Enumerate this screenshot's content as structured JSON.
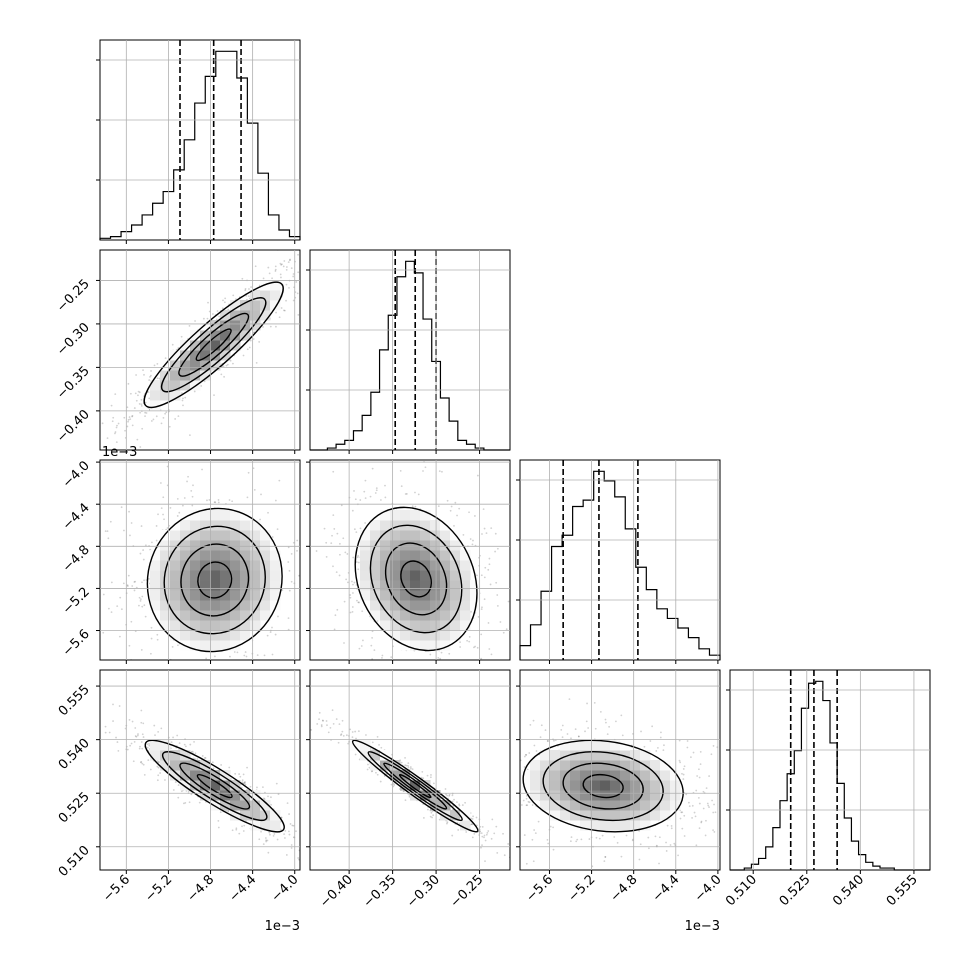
{
  "chart_data": {
    "type": "corner",
    "figure_background": "#ffffff",
    "colors": {
      "hist_line": "#000000",
      "grid": "#b0b0b0",
      "quantile_line": "#000000",
      "density_dark": "#000000",
      "density_light": "#ffffff"
    },
    "grid": true,
    "parameters": [
      {
        "name": "",
        "range": [
          -5.85,
          -3.95
        ],
        "ticks": [
          -5.6,
          -5.2,
          -4.8,
          -4.4,
          -4.0
        ],
        "tick_labels": [
          "−5.6",
          "−5.2",
          "−4.8",
          "−4.4",
          "−4.0"
        ],
        "offset_text": "1e−3",
        "quantiles": [
          -5.09,
          -4.77,
          -4.51
        ],
        "histogram": {
          "bins": [
            -5.85,
            -5.75,
            -5.65,
            -5.55,
            -5.45,
            -5.35,
            -5.25,
            -5.15,
            -5.05,
            -4.95,
            -4.85,
            -4.75,
            -4.65,
            -4.55,
            -4.45,
            -4.35,
            -4.25,
            -4.15,
            -4.05,
            -3.95
          ],
          "counts": [
            1,
            2,
            5,
            9,
            15,
            22,
            29,
            42,
            60,
            82,
            98,
            113,
            113,
            97,
            70,
            40,
            15,
            6,
            2
          ]
        }
      },
      {
        "name": "",
        "range": [
          -0.445,
          -0.215
        ],
        "ticks": [
          -0.4,
          -0.35,
          -0.3,
          -0.25
        ],
        "tick_labels": [
          "−0.40",
          "−0.35",
          "−0.30",
          "−0.25"
        ],
        "offset_text": "",
        "quantiles": [
          -0.347,
          -0.324,
          -0.3
        ],
        "histogram": {
          "bins": [
            -0.445,
            -0.435,
            -0.425,
            -0.415,
            -0.405,
            -0.395,
            -0.385,
            -0.375,
            -0.365,
            -0.355,
            -0.345,
            -0.335,
            -0.325,
            -0.315,
            -0.305,
            -0.295,
            -0.285,
            -0.275,
            -0.265,
            -0.255,
            -0.245,
            -0.235,
            -0.225,
            -0.215
          ],
          "counts": [
            0,
            0,
            1,
            3,
            5,
            10,
            18,
            30,
            52,
            70,
            90,
            98,
            92,
            68,
            46,
            27,
            15,
            5,
            3,
            1,
            0,
            0,
            0
          ]
        }
      },
      {
        "name": "",
        "range": [
          -5.88,
          -3.98
        ],
        "ticks": [
          -5.6,
          -5.2,
          -4.8,
          -4.4,
          -4.0
        ],
        "tick_labels": [
          "−5.6",
          "−5.2",
          "−4.8",
          "−4.4",
          "−4.0"
        ],
        "offset_text": "1e−3",
        "quantiles": [
          -5.47,
          -5.13,
          -4.76
        ],
        "histogram": {
          "bins": [
            -5.88,
            -5.78,
            -5.68,
            -5.58,
            -5.48,
            -5.38,
            -5.28,
            -5.18,
            -5.08,
            -4.98,
            -4.88,
            -4.78,
            -4.68,
            -4.58,
            -4.48,
            -4.38,
            -4.28,
            -4.18,
            -4.08,
            -3.98
          ],
          "counts": [
            9,
            22,
            43,
            71,
            78,
            96,
            100,
            118,
            112,
            102,
            82,
            58,
            44,
            32,
            26,
            20,
            14,
            7,
            3
          ]
        }
      },
      {
        "name": "",
        "range": [
          0.5035,
          0.5595
        ],
        "ticks": [
          0.51,
          0.525,
          0.54,
          0.555
        ],
        "tick_labels": [
          "0.510",
          "0.525",
          "0.540",
          "0.555"
        ],
        "offset_text": "",
        "quantiles": [
          0.5205,
          0.527,
          0.5335
        ],
        "histogram": {
          "bins": [
            0.5035,
            0.5055,
            0.5075,
            0.5095,
            0.5115,
            0.5135,
            0.5155,
            0.5175,
            0.5195,
            0.5215,
            0.5235,
            0.5255,
            0.5275,
            0.5295,
            0.5315,
            0.5335,
            0.5355,
            0.5375,
            0.5395,
            0.5415,
            0.5435,
            0.5455,
            0.5475,
            0.5495,
            0.5515,
            0.5535,
            0.5555,
            0.5575,
            0.5595
          ],
          "counts": [
            0,
            0,
            1,
            3,
            6,
            12,
            22,
            36,
            50,
            62,
            84,
            97,
            98,
            88,
            66,
            45,
            27,
            15,
            8,
            4,
            2,
            1,
            1,
            0,
            0,
            0,
            0,
            0
          ]
        }
      }
    ],
    "pair_panels": [
      {
        "row": 1,
        "col": 0,
        "center": [
          -4.77,
          -0.324
        ],
        "sigma": [
          0.33,
          0.036
        ],
        "corr": 0.9
      },
      {
        "row": 2,
        "col": 0,
        "center": [
          -4.76,
          -5.12
        ],
        "sigma": [
          0.32,
          0.34
        ],
        "corr": 0.05
      },
      {
        "row": 2,
        "col": 1,
        "center": [
          -0.323,
          -5.11
        ],
        "sigma": [
          0.035,
          0.34
        ],
        "corr": -0.2
      },
      {
        "row": 3,
        "col": 0,
        "center": [
          -4.76,
          0.527
        ],
        "sigma": [
          0.33,
          0.0064
        ],
        "corr": -0.9
      },
      {
        "row": 3,
        "col": 1,
        "center": [
          -0.324,
          0.527
        ],
        "sigma": [
          0.036,
          0.0064
        ],
        "corr": -0.97
      },
      {
        "row": 3,
        "col": 2,
        "center": [
          -5.09,
          0.527
        ],
        "sigma": [
          0.38,
          0.0064
        ],
        "corr": -0.15
      }
    ],
    "contour_levels": [
      0.5,
      1.0,
      1.5,
      2.0
    ],
    "density_bins": 20
  }
}
